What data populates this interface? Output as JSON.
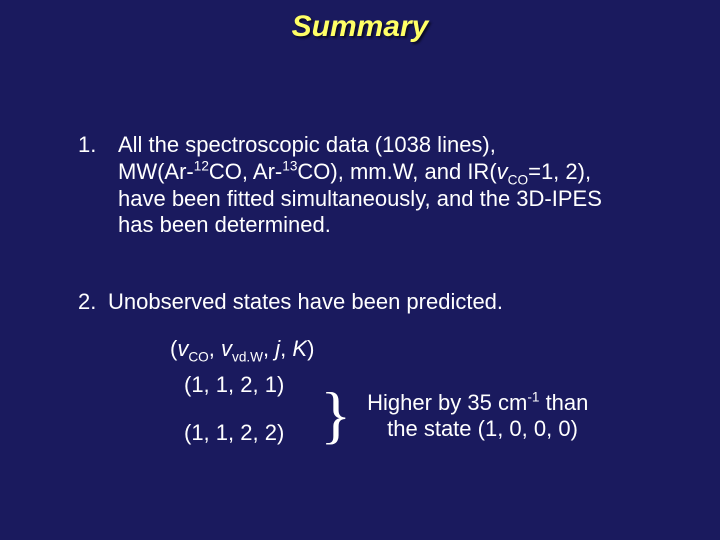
{
  "background_color": "#1a1a5e",
  "title_color": "#ffff66",
  "text_color": "#ffffff",
  "title": "Summary",
  "item1": {
    "num": "1.",
    "line1_a": " All the spectroscopic data (1038 lines),",
    "line2_a": "MW(Ar-",
    "sup12": "12",
    "line2_b": "CO, Ar-",
    "sup13": "13",
    "line2_c": "CO), mm.W, and IR(",
    "v": "v",
    "co": "CO",
    "line2_d": "=1, 2),",
    "line3": "have been fitted simultaneously, and the 3D-IPES",
    "line4": "has been determined."
  },
  "item2": {
    "num": "2.",
    "text": " Unobserved states have been predicted."
  },
  "states": {
    "header_open": "(",
    "v1": "v",
    "sub_co": "CO",
    "sep1": ", ",
    "v2": "v",
    "sub_vdw": "vd.W",
    "sep2": ", ",
    "j": "j",
    "sep3": ", ",
    "K": "K",
    "header_close": ")",
    "tuple1": "(1, 1, 2, 1)",
    "tuple2": "(1, 1, 2, 2)",
    "brace": "}",
    "right1_a": "Higher by 35 cm",
    "right1_sup": "-1",
    "right1_b": " than",
    "right2": "the state (1, 0, 0, 0)"
  }
}
